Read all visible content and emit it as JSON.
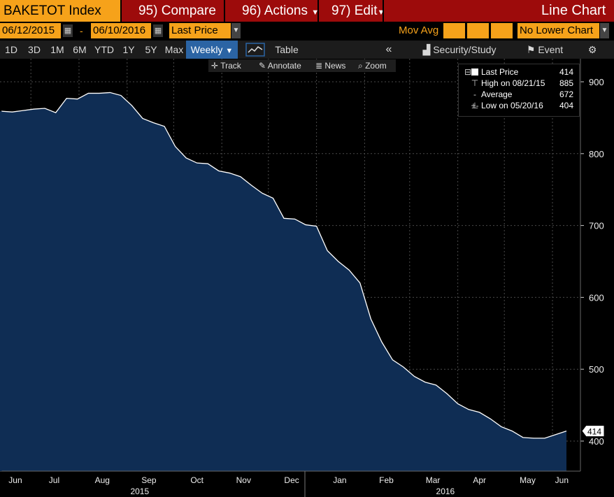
{
  "toolbar": {
    "ticker": "BAKETOT Index",
    "compare": "95) Compare",
    "actions": "96) Actions",
    "edit": "97) Edit",
    "chart_title": "Line Chart"
  },
  "controls": {
    "start_date": "06/12/2015",
    "dash": "-",
    "end_date": "06/10/2016",
    "field": "Last Price",
    "mov_avg": "Mov Avg",
    "lower_chart": "No Lower Chart"
  },
  "ranges": [
    "1D",
    "3D",
    "1M",
    "6M",
    "YTD",
    "1Y",
    "5Y",
    "Max"
  ],
  "frequency": "Weekly",
  "table_label": "Table",
  "security_study": "Security/Study",
  "event": "Event",
  "chart_tools": {
    "track": "Track",
    "annotate": "Annotate",
    "news": "News",
    "zoom": "Zoom"
  },
  "legend": {
    "last_label": "Last Price",
    "last_value": "414",
    "high_label": "High on 08/21/15",
    "high_value": "885",
    "avg_label": "Average",
    "avg_value": "672",
    "low_label": "Low on 05/20/16",
    "low_value": "404"
  },
  "current_value_tag": "414",
  "colors": {
    "area": "#0f2d54",
    "line": "#ffffff",
    "accent": "#f6a21a",
    "toolbar": "#9d0b0b"
  },
  "chart_data": {
    "type": "area",
    "y_ticks": [
      400,
      500,
      600,
      700,
      800,
      900
    ],
    "ylim": [
      360,
      925
    ],
    "x_month_labels": [
      "Jun",
      "Jul",
      "Aug",
      "Sep",
      "Oct",
      "Nov",
      "Dec",
      "Jan",
      "Feb",
      "Mar",
      "Apr",
      "May",
      "Jun"
    ],
    "year_labels": [
      "2015",
      "2016"
    ],
    "series": [
      {
        "x": [
          "2015-06-12",
          "2015-06-19",
          "2015-06-26",
          "2015-07-03",
          "2015-07-10",
          "2015-07-17",
          "2015-07-24",
          "2015-07-31",
          "2015-08-07",
          "2015-08-14",
          "2015-08-21",
          "2015-08-28",
          "2015-09-04",
          "2015-09-11",
          "2015-09-18",
          "2015-09-25",
          "2015-10-02",
          "2015-10-09",
          "2015-10-16",
          "2015-10-23",
          "2015-10-30",
          "2015-11-06",
          "2015-11-13",
          "2015-11-20",
          "2015-11-27",
          "2015-12-04",
          "2015-12-11",
          "2015-12-18",
          "2015-12-25",
          "2016-01-01",
          "2016-01-08",
          "2016-01-15",
          "2016-01-22",
          "2016-01-29",
          "2016-02-05",
          "2016-02-12",
          "2016-02-19",
          "2016-02-26",
          "2016-03-04",
          "2016-03-11",
          "2016-03-18",
          "2016-03-25",
          "2016-04-01",
          "2016-04-08",
          "2016-04-15",
          "2016-04-22",
          "2016-04-29",
          "2016-05-06",
          "2016-05-13",
          "2016-05-20",
          "2016-05-27",
          "2016-06-03",
          "2016-06-10"
        ],
        "values": [
          859,
          858,
          860,
          862,
          863,
          857,
          877,
          876,
          884,
          884,
          885,
          881,
          867,
          849,
          843,
          838,
          810,
          794,
          787,
          786,
          776,
          773,
          768,
          756,
          745,
          738,
          710,
          709,
          701,
          699,
          665,
          650,
          638,
          620,
          570,
          538,
          513,
          503,
          490,
          482,
          478,
          466,
          452,
          444,
          440,
          431,
          420,
          414,
          405,
          404,
          404,
          409,
          414
        ]
      }
    ]
  }
}
